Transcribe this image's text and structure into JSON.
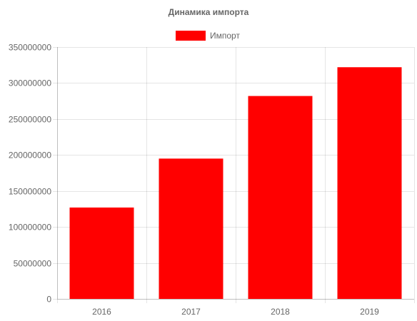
{
  "chart_data": {
    "type": "bar",
    "title": "Динамика импорта",
    "categories": [
      "2016",
      "2017",
      "2018",
      "2019"
    ],
    "series": [
      {
        "name": "Импорт",
        "color": "#ff0000",
        "values": [
          127000000,
          195000000,
          282000000,
          322000000
        ]
      }
    ],
    "ylim": [
      0,
      350000000
    ],
    "yticks": [
      0,
      50000000,
      100000000,
      150000000,
      200000000,
      250000000,
      300000000,
      350000000
    ],
    "xlabel": "",
    "ylabel": "",
    "grid": true,
    "legend_position": "top"
  }
}
